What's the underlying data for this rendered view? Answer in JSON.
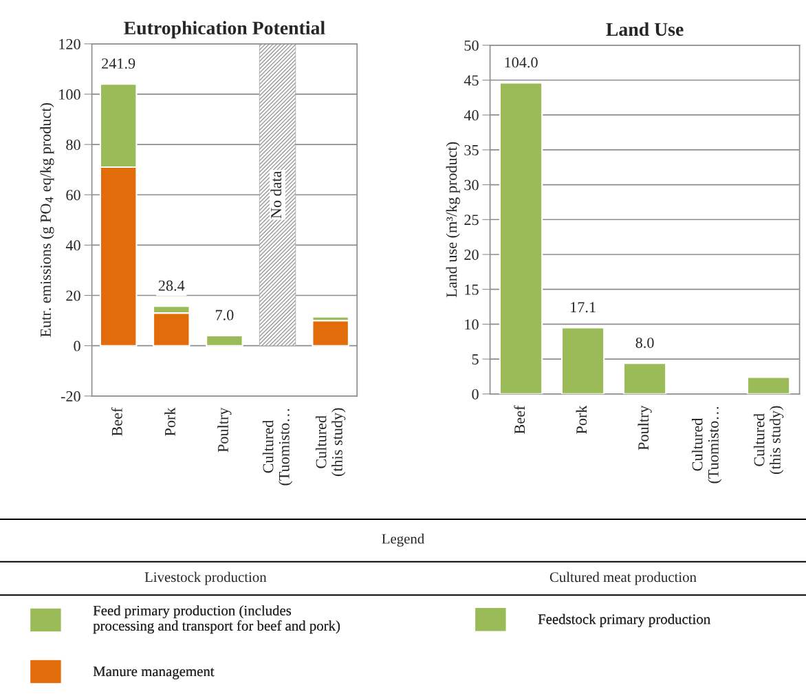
{
  "chart_data": [
    {
      "type": "bar",
      "title": "Eutrophication Potential",
      "ylabel": "Eutr. emissions (g PO$_{4}$ eq/kg product)",
      "legend_title": "Legend",
      "categories": [
        "Beef",
        "Pork",
        "Poultry",
        "Cultured\n(Tuomisto…",
        "Cultured\n(this study)"
      ],
      "stacked": true,
      "series": [
        {
          "name": "Manure management",
          "color": "#e36c0a",
          "values": [
            71,
            13,
            null,
            null,
            10
          ]
        },
        {
          "name": "Feed primary production (includes\nprocessing and transport for beef and pork)",
          "color": "#9bbb59",
          "values": [
            33,
            2.7,
            4,
            null,
            null
          ]
        },
        {
          "name": "Feedstock primary production",
          "color": "#9bbb59",
          "values": [
            null,
            null,
            null,
            null,
            1.5
          ]
        },
        {
          "color": "#9a9a9a",
          "values": [
            null,
            null,
            null,
            120,
            null
          ]
        }
      ],
      "value_labels": [
        "241.9",
        "28.4",
        "7.0",
        null,
        null
      ],
      "annotations": [
        "Livestock production",
        "Cultured meat production",
        "No data"
      ],
      "ylim": [
        -20,
        120
      ],
      "yticks": [
        -20,
        0,
        20,
        40,
        60,
        80,
        100,
        120
      ],
      "grid": "y",
      "legend": "bottom"
    },
    {
      "type": "bar",
      "title": "Land Use",
      "ylabel": "Land use (m³/kg product)",
      "categories": [
        "Beef",
        "Pork",
        "Poultry",
        "Cultured\n(Tuomisto…",
        "Cultured\n(this study)"
      ],
      "series": [
        {
          "color": "#9bbb59",
          "values": [
            44.6,
            9.5,
            4.4,
            null,
            2.4
          ]
        }
      ],
      "value_labels": [
        "104.0",
        "17.1",
        "8.0",
        null,
        null
      ],
      "ylim": [
        0,
        50
      ],
      "yticks": [
        0,
        5,
        10,
        15,
        20,
        25,
        30,
        35,
        40,
        45,
        50
      ],
      "grid": "y"
    }
  ]
}
